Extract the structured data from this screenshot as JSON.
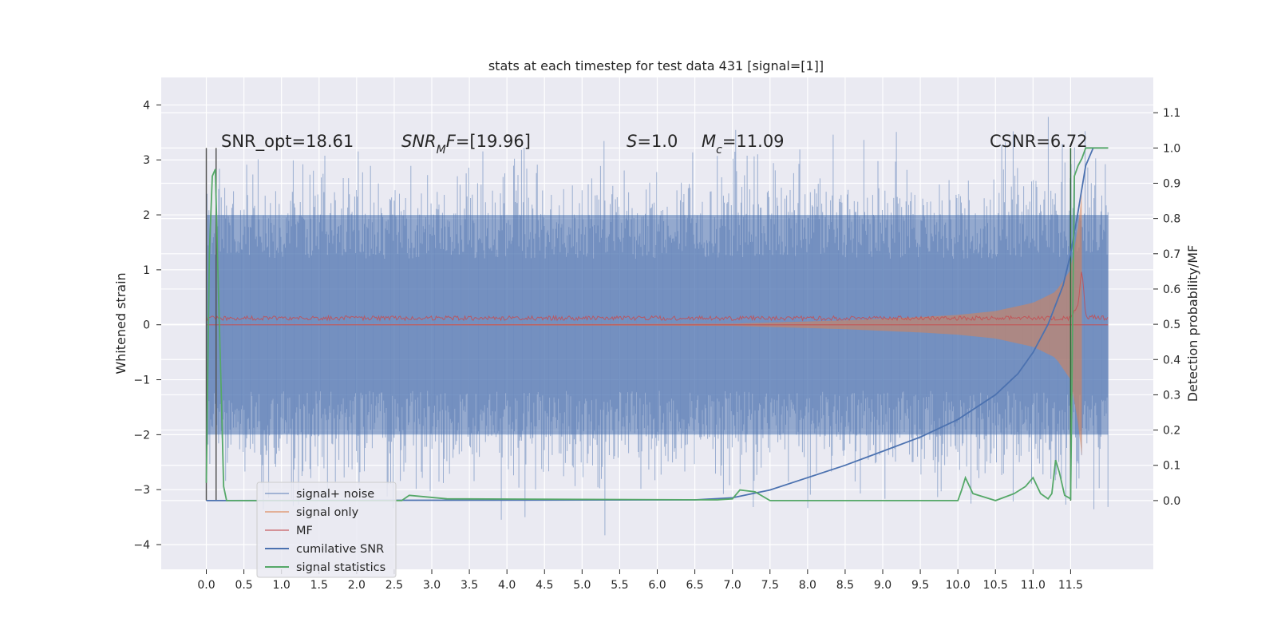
{
  "chart_data": {
    "type": "line",
    "title": "stats at each timestep for test data 431 [signal=[1]]",
    "xlabel": "",
    "ylabel": "Whitened strain",
    "ylabel_right": "Detection probability/MF",
    "xlim": [
      -0.6,
      12.6
    ],
    "ylim": [
      -4.45,
      4.5
    ],
    "ylim_right": [
      -0.195,
      1.2
    ],
    "xticks": [
      "0.0",
      "0.5",
      "1.0",
      "1.5",
      "2.0",
      "2.5",
      "3.0",
      "3.5",
      "4.0",
      "4.5",
      "5.0",
      "5.5",
      "6.0",
      "6.5",
      "7.0",
      "7.5",
      "8.0",
      "8.5",
      "9.0",
      "9.5",
      "10.0",
      "10.5",
      "11.0",
      "11.5"
    ],
    "yticks_left": [
      "4",
      "3",
      "2",
      "1",
      "0",
      "−1",
      "−2",
      "−3",
      "−4"
    ],
    "yticks_right": [
      "1.1",
      "1.0",
      "0.9",
      "0.8",
      "0.7",
      "0.6",
      "0.5",
      "0.4",
      "0.3",
      "0.2",
      "0.1",
      "0.0"
    ],
    "grid": true,
    "legend_position": "lower-left",
    "annotations": [
      {
        "id": "snr-opt",
        "text": "SNR_opt=18.61",
        "italic": false
      },
      {
        "id": "snr-mf",
        "text": "SNR_MF=[19.96]",
        "italic": true
      },
      {
        "id": "s-value",
        "text": "S=1.0",
        "italic": true
      },
      {
        "id": "mc-value",
        "text": "M_c=11.09",
        "italic": true
      },
      {
        "id": "csnr",
        "text": "CSNR=6.72",
        "italic": false
      }
    ],
    "vertical_markers": [
      0.0,
      0.13,
      11.5
    ],
    "series": [
      {
        "name": "signal+ noise",
        "color": "#4c72b0",
        "axis": "left",
        "style": "noise band",
        "x": [
          0.0,
          12.0
        ],
        "values_envelope": [
          -2.0,
          2.0
        ],
        "peak_range": [
          -4.0,
          4.1
        ]
      },
      {
        "name": "signal only",
        "color": "#dd8452",
        "axis": "left",
        "style": "chirp envelope",
        "x": [
          0,
          7.0,
          7.5,
          8.0,
          8.5,
          9.0,
          9.5,
          10.0,
          10.5,
          11.0,
          11.3,
          11.5,
          11.6,
          11.65
        ],
        "values": [
          0,
          0.02,
          0.04,
          0.06,
          0.08,
          0.11,
          0.14,
          0.18,
          0.25,
          0.4,
          0.6,
          1.0,
          1.8,
          2.4
        ]
      },
      {
        "name": "MF",
        "color": "#c44e52",
        "axis": "left",
        "style": "line",
        "x": [
          0,
          11.5,
          11.6,
          11.65,
          11.7,
          12.0
        ],
        "values": [
          0.08,
          0.08,
          0.3,
          1.0,
          0.1,
          0.08
        ]
      },
      {
        "name": "cumilative SNR",
        "color": "#4c72b0",
        "axis": "right",
        "x": [
          0.0,
          6.5,
          7.0,
          7.5,
          8.0,
          8.5,
          9.0,
          9.5,
          10.0,
          10.5,
          10.8,
          11.0,
          11.2,
          11.4,
          11.5,
          11.6,
          11.7,
          11.8
        ],
        "values": [
          0.0,
          0.002,
          0.008,
          0.03,
          0.065,
          0.1,
          0.14,
          0.18,
          0.23,
          0.3,
          0.36,
          0.42,
          0.5,
          0.61,
          0.7,
          0.82,
          0.95,
          1.0
        ]
      },
      {
        "name": "signal statistics",
        "color": "#55a868",
        "axis": "right",
        "x": [
          0.0,
          0.04,
          0.08,
          0.12,
          0.16,
          0.2,
          0.23,
          0.27,
          0.3,
          0.5,
          2.6,
          2.7,
          3.2,
          6.8,
          7.0,
          7.1,
          7.3,
          7.5,
          10.0,
          10.05,
          10.1,
          10.2,
          10.5,
          10.75,
          10.9,
          11.0,
          11.1,
          11.2,
          11.25,
          11.3,
          11.35,
          11.42,
          11.5,
          11.55,
          11.6,
          11.65,
          11.7,
          12.0
        ],
        "values": [
          0.05,
          0.7,
          0.92,
          0.94,
          0.6,
          0.3,
          0.04,
          0.0,
          0.0,
          0.0,
          0.0,
          0.015,
          0.005,
          0.002,
          0.005,
          0.03,
          0.025,
          0.0,
          0.0,
          0.03,
          0.065,
          0.02,
          0.0,
          0.02,
          0.04,
          0.065,
          0.02,
          0.005,
          0.02,
          0.115,
          0.08,
          0.015,
          0.005,
          0.92,
          0.95,
          0.97,
          1.0,
          1.0
        ]
      }
    ]
  }
}
